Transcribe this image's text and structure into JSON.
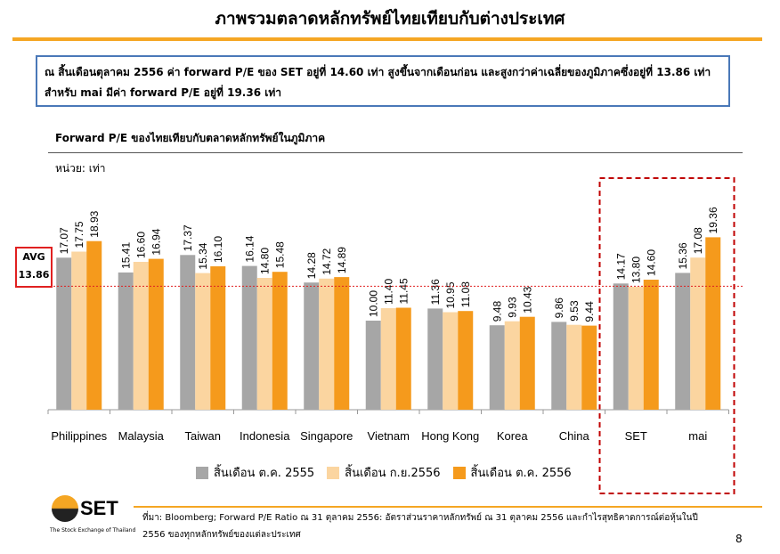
{
  "page": {
    "title": "ภาพรวมตลาดหลักทรัพย์ไทยเทียบกับต่างประเทศ",
    "summary": "ณ สิ้นเดือนตุลาคม 2556 ค่า forward P/E ของ SET อยู่ที่ 14.60 เท่า สูงขึ้นจากเดือนก่อน และสูงกว่าค่าเฉลี่ยของภูมิภาคซึ่งอยู่ที่ 13.86 เท่า สำหรับ mai มีค่า forward P/E อยู่ที่ 19.36 เท่า",
    "chart_title": "Forward P/E ของไทยเทียบกับตลาดหลักทรัพย์ในภูมิภาค",
    "unit_label": "หน่วย: เท่า",
    "avg_label": "AVG",
    "avg_value": "13.86",
    "source": "ที่มา: Bloomberg; Forward P/E Ratio ณ 31 ตุลาคม 2556: อัตราส่วนราคาหลักทรัพย์ ณ 31 ตุลาคม 2556 และกำไรสุทธิคาดการณ์ต่อหุ้นในปี 2556 ของทุกหลักทรัพย์ของแต่ละประเทศ",
    "page_number": "8",
    "logo_text": "SET",
    "logo_sub": "The Stock Exchange of Thailand"
  },
  "chart_data": {
    "type": "bar",
    "categories": [
      "Philippines",
      "Malaysia",
      "Taiwan",
      "Indonesia",
      "Singapore",
      "Vietnam",
      "Hong Kong",
      "Korea",
      "China",
      "SET",
      "mai"
    ],
    "series": [
      {
        "name": "สิ้นเดือน ต.ค. 2555",
        "color": "#a6a6a6",
        "values": [
          17.07,
          15.41,
          17.37,
          16.14,
          14.28,
          10.0,
          11.36,
          9.48,
          9.86,
          14.17,
          15.36
        ]
      },
      {
        "name": "สิ้นเดือน ก.ย.2556",
        "color": "#fbd5a0",
        "values": [
          17.75,
          16.6,
          15.34,
          14.8,
          14.72,
          11.4,
          10.95,
          9.93,
          9.53,
          13.8,
          17.08
        ]
      },
      {
        "name": "สิ้นเดือน ต.ค. 2556",
        "color": "#f59a1c",
        "values": [
          18.93,
          16.94,
          16.1,
          15.48,
          14.89,
          11.45,
          11.08,
          10.43,
          9.44,
          14.6,
          19.36
        ]
      }
    ],
    "value_labels": [
      [
        "17.07",
        "17.75",
        "18.93"
      ],
      [
        "15.41",
        "16.60",
        "16.94"
      ],
      [
        "17.37",
        "15.34",
        "16.10"
      ],
      [
        "16.14",
        "14.80",
        "15.48"
      ],
      [
        "14.28",
        "14.72",
        "14.89"
      ],
      [
        "10.00",
        "11.40",
        "11.45"
      ],
      [
        "11.36",
        "10.95",
        "11.08"
      ],
      [
        "9.48",
        "9.93",
        "10.43"
      ],
      [
        "9.86",
        "9.53",
        "9.44"
      ],
      [
        "14.17",
        "13.80",
        "14.60"
      ],
      [
        "15.36",
        "17.08",
        "19.36"
      ]
    ],
    "average": 13.86,
    "highlighted_categories": [
      "SET",
      "mai"
    ],
    "ylim": [
      0,
      20
    ],
    "legend_position": "bottom",
    "grid": false
  }
}
